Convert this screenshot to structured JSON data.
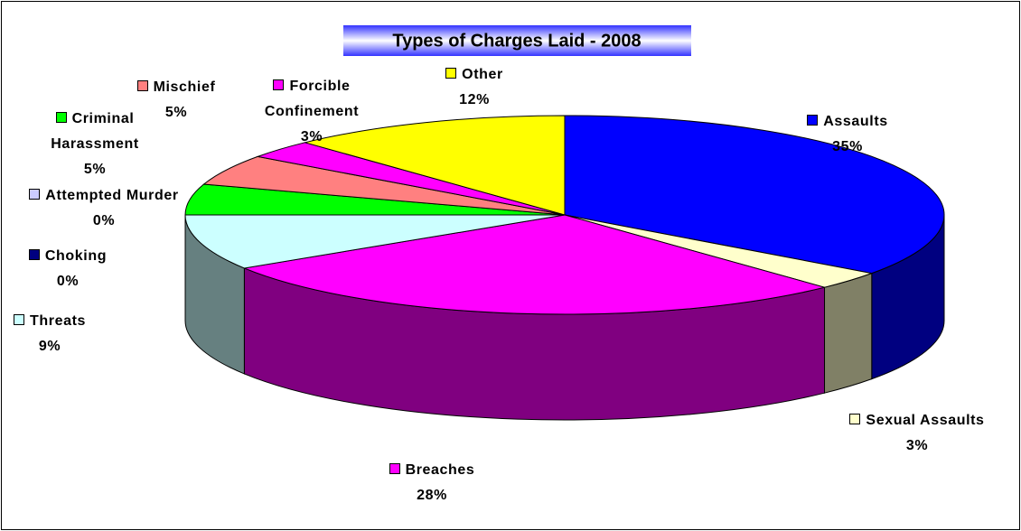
{
  "chart_data": {
    "type": "pie3d",
    "title": "Types of Charges Laid - 2008",
    "categories": [
      "Assaults",
      "Sexual Assaults",
      "Breaches",
      "Threats",
      "Choking",
      "Attempted Murder",
      "Criminal Harassment",
      "Mischief",
      "Forcible Confinement",
      "Other"
    ],
    "values": [
      35,
      3,
      28,
      9,
      0,
      0,
      5,
      5,
      3,
      12
    ],
    "value_labels": [
      "35%",
      "3%",
      "28%",
      "9%",
      "0%",
      "0%",
      "5%",
      "5%",
      "3%",
      "12%"
    ],
    "colors": [
      "#0000ff",
      "#ffffcc",
      "#ff00ff",
      "#ccffff",
      "#000080",
      "#ccccff",
      "#00ff00",
      "#ff8080",
      "#ff00ff",
      "#ffff00"
    ]
  }
}
